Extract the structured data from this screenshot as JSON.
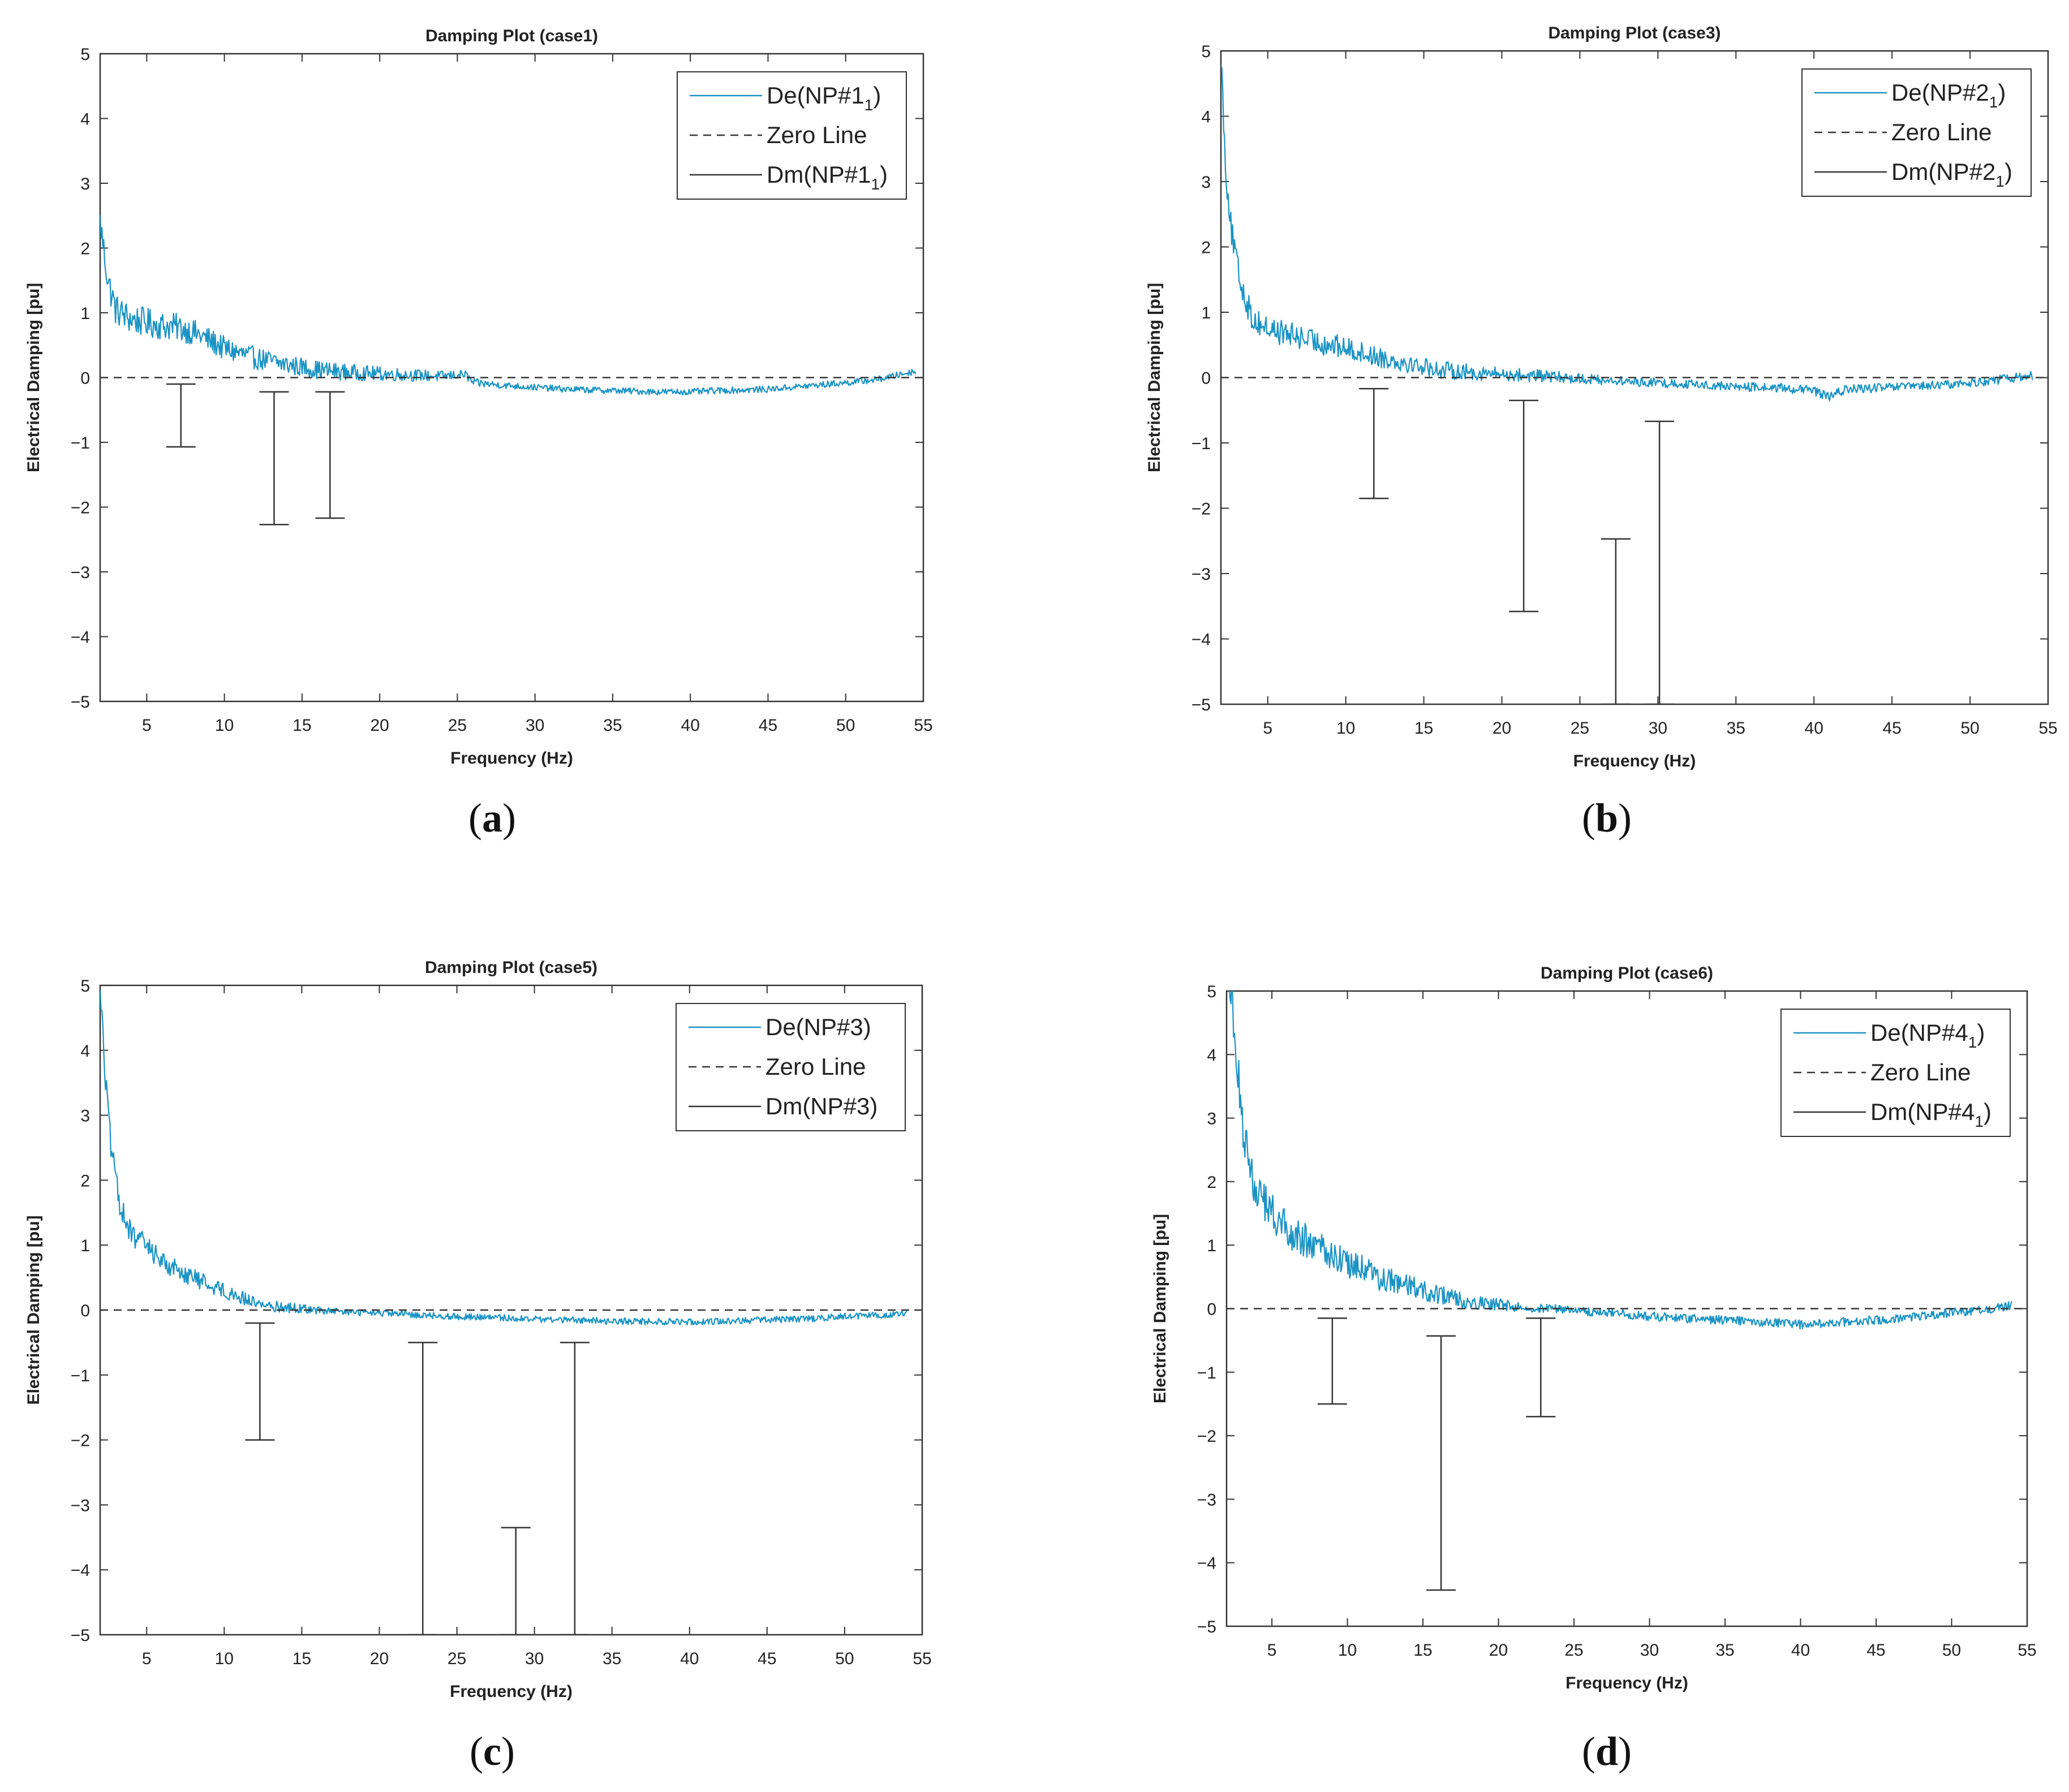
{
  "figure": {
    "colors": {
      "de_line": "#1a93c4",
      "zero_line": "#333333",
      "dm_bars": "#333333",
      "axes": "#333333"
    }
  },
  "chart_data": [
    {
      "type": "line",
      "panel_label": "a",
      "title": "Damping Plot (case1)",
      "xlabel": "Frequency (Hz)",
      "ylabel": "Electrical Damping [pu]",
      "xlim": [
        2,
        55
      ],
      "ylim": [
        -5,
        5
      ],
      "xticks": [
        5,
        10,
        15,
        20,
        25,
        30,
        35,
        40,
        45,
        50,
        55
      ],
      "yticks": [
        5,
        4,
        3,
        2,
        1,
        0,
        -1,
        -2,
        -3,
        -4,
        -5
      ],
      "legend_position": "top-right",
      "series": [
        {
          "kind": "noisy-line",
          "legend": {
            "main": "De(NP#1",
            "sub": "1",
            "close": ")"
          },
          "x": [
            2,
            2.5,
            3,
            4,
            5,
            6,
            7,
            8,
            9,
            10,
            12,
            14,
            16,
            18,
            20,
            22,
            24,
            25.5,
            26,
            28,
            30,
            32,
            35,
            38,
            40,
            42,
            45,
            48,
            50,
            52,
            53,
            54.5
          ],
          "y": [
            2.4,
            1.5,
            1.05,
            0.9,
            0.85,
            0.8,
            0.78,
            0.7,
            0.58,
            0.45,
            0.3,
            0.2,
            0.12,
            0.08,
            0.06,
            0.04,
            0.02,
            0.05,
            -0.08,
            -0.12,
            -0.15,
            -0.18,
            -0.2,
            -0.22,
            -0.22,
            -0.2,
            -0.18,
            -0.12,
            -0.08,
            -0.03,
            0.02,
            0.1
          ],
          "noise": 0.25,
          "noise_fade_until": 28,
          "noise_after": 0.05
        },
        {
          "kind": "zero-line",
          "legend": {
            "main": "Zero Line",
            "sub": "",
            "close": ""
          }
        },
        {
          "kind": "bars",
          "legend": {
            "main": "Dm(NP#1",
            "sub": "1",
            "close": ")"
          },
          "bars": [
            {
              "x": 7.2,
              "top": -0.1,
              "bottom": -1.07
            },
            {
              "x": 13.2,
              "top": -0.22,
              "bottom": -2.27
            },
            {
              "x": 16.8,
              "top": -0.22,
              "bottom": -2.17
            }
          ]
        }
      ]
    },
    {
      "type": "line",
      "panel_label": "b",
      "title": "Damping Plot (case3)",
      "xlabel": "Frequency (Hz)",
      "ylabel": "Electrical Damping [pu]",
      "xlim": [
        2,
        55
      ],
      "ylim": [
        -5,
        5
      ],
      "xticks": [
        5,
        10,
        15,
        20,
        25,
        30,
        35,
        40,
        45,
        50,
        55
      ],
      "yticks": [
        5,
        4,
        3,
        2,
        1,
        0,
        -1,
        -2,
        -3,
        -4,
        -5
      ],
      "legend_position": "top-right",
      "series": [
        {
          "kind": "noisy-line",
          "legend": {
            "main": "De(NP#2",
            "sub": "1",
            "close": ")"
          },
          "x": [
            2,
            2.3,
            2.7,
            3.2,
            4,
            5,
            6,
            7,
            8,
            10,
            12,
            14,
            16,
            18,
            20,
            22,
            24,
            26,
            28,
            30,
            32,
            35,
            38,
            40,
            41,
            42,
            45,
            48,
            50,
            52,
            54
          ],
          "y": [
            5,
            3.2,
            2.2,
            1.5,
            0.9,
            0.75,
            0.68,
            0.62,
            0.55,
            0.45,
            0.32,
            0.22,
            0.12,
            0.08,
            0.05,
            0.03,
            0.0,
            -0.03,
            -0.06,
            -0.08,
            -0.1,
            -0.14,
            -0.16,
            -0.2,
            -0.3,
            -0.18,
            -0.15,
            -0.12,
            -0.08,
            -0.03,
            0.03
          ],
          "noise": 0.22,
          "noise_fade_until": 27,
          "noise_after": 0.07
        },
        {
          "kind": "zero-line",
          "legend": {
            "main": "Zero Line",
            "sub": "",
            "close": ""
          }
        },
        {
          "kind": "bars",
          "legend": {
            "main": "Dm(NP#2",
            "sub": "1",
            "close": ")"
          },
          "bars": [
            {
              "x": 11.8,
              "top": -0.17,
              "bottom": -1.85
            },
            {
              "x": 21.4,
              "top": -0.35,
              "bottom": -3.58
            },
            {
              "x": 27.3,
              "top": -2.47,
              "bottom": -5
            },
            {
              "x": 30.1,
              "top": -0.67,
              "bottom": -5
            }
          ]
        }
      ]
    },
    {
      "type": "line",
      "panel_label": "c",
      "title": "Damping Plot (case5)",
      "xlabel": "Frequency (Hz)",
      "ylabel": "Electrical Damping [pu]",
      "xlim": [
        2,
        55
      ],
      "ylim": [
        -5,
        5
      ],
      "xticks": [
        5,
        10,
        15,
        20,
        25,
        30,
        35,
        40,
        45,
        50,
        55
      ],
      "yticks": [
        5,
        4,
        3,
        2,
        1,
        0,
        -1,
        -2,
        -3,
        -4,
        -5
      ],
      "legend_position": "top-right",
      "series": [
        {
          "kind": "noisy-line",
          "legend": {
            "main": "De(NP#3)",
            "sub": "",
            "close": ""
          },
          "x": [
            2,
            2.3,
            2.7,
            3.2,
            4,
            5,
            6,
            7,
            8,
            9,
            10,
            11,
            12,
            13,
            15,
            17,
            20,
            22,
            25,
            28,
            30,
            32,
            35,
            38,
            40,
            42,
            45,
            48,
            50,
            52,
            54
          ],
          "y": [
            5,
            3.7,
            2.5,
            1.7,
            1.15,
            1.0,
            0.75,
            0.62,
            0.5,
            0.4,
            0.3,
            0.2,
            0.12,
            0.06,
            0.02,
            -0.02,
            -0.05,
            -0.07,
            -0.1,
            -0.12,
            -0.14,
            -0.15,
            -0.17,
            -0.18,
            -0.18,
            -0.17,
            -0.15,
            -0.13,
            -0.1,
            -0.08,
            -0.06
          ],
          "noise": 0.2,
          "noise_fade_until": 17,
          "noise_after": 0.05
        },
        {
          "kind": "zero-line",
          "legend": {
            "main": "Zero Line",
            "sub": "",
            "close": ""
          }
        },
        {
          "kind": "bars",
          "legend": {
            "main": "Dm(NP#3)",
            "sub": "",
            "close": ""
          },
          "bars": [
            {
              "x": 12.3,
              "top": -0.2,
              "bottom": -2.0
            },
            {
              "x": 22.8,
              "top": -0.5,
              "bottom": -5
            },
            {
              "x": 28.8,
              "top": -3.35,
              "bottom": -5
            },
            {
              "x": 32.6,
              "top": -0.5,
              "bottom": -5
            }
          ]
        }
      ]
    },
    {
      "type": "line",
      "panel_label": "d",
      "title": "Damping Plot (case6)",
      "xlabel": "Frequency (Hz)",
      "ylabel": "Electrical Damping [pu]",
      "xlim": [
        2,
        55
      ],
      "ylim": [
        -5,
        5
      ],
      "xticks": [
        5,
        10,
        15,
        20,
        25,
        30,
        35,
        40,
        45,
        50,
        55
      ],
      "yticks": [
        5,
        4,
        3,
        2,
        1,
        0,
        -1,
        -2,
        -3,
        -4,
        -5
      ],
      "xtick_labels": [
        "5",
        "10",
        "15",
        "20",
        "25",
        "30",
        "35",
        "40",
        "45",
        "50",
        "55"
      ],
      "legend_position": "top-right",
      "series": [
        {
          "kind": "noisy-line",
          "legend": {
            "main": "De(NP#4",
            "sub": "1",
            "close": ")"
          },
          "x": [
            2,
            2.3,
            2.6,
            3,
            3.5,
            4,
            5,
            6,
            7,
            8,
            9,
            10,
            12,
            14,
            16,
            18,
            20,
            22,
            24,
            26,
            28,
            30,
            32,
            35,
            38,
            40,
            42,
            45,
            48,
            50,
            52,
            54
          ],
          "y": [
            5,
            5,
            4.2,
            3.0,
            2.3,
            1.8,
            1.5,
            1.25,
            1.1,
            0.95,
            0.85,
            0.72,
            0.5,
            0.35,
            0.22,
            0.12,
            0.06,
            0.02,
            0.0,
            -0.05,
            -0.08,
            -0.12,
            -0.15,
            -0.18,
            -0.22,
            -0.25,
            -0.22,
            -0.18,
            -0.12,
            -0.06,
            -0.02,
            0.05
          ],
          "noise": 0.35,
          "noise_fade_until": 22,
          "noise_after": 0.07
        },
        {
          "kind": "zero-line",
          "legend": {
            "main": "Zero Line",
            "sub": "",
            "close": ""
          }
        },
        {
          "kind": "bars",
          "legend": {
            "main": "Dm(NP#4",
            "sub": "1",
            "close": ")"
          },
          "bars": [
            {
              "x": 9.0,
              "top": -0.15,
              "bottom": -1.5
            },
            {
              "x": 16.2,
              "top": -0.43,
              "bottom": -4.43
            },
            {
              "x": 22.8,
              "top": -0.15,
              "bottom": -1.7
            }
          ]
        }
      ]
    }
  ]
}
